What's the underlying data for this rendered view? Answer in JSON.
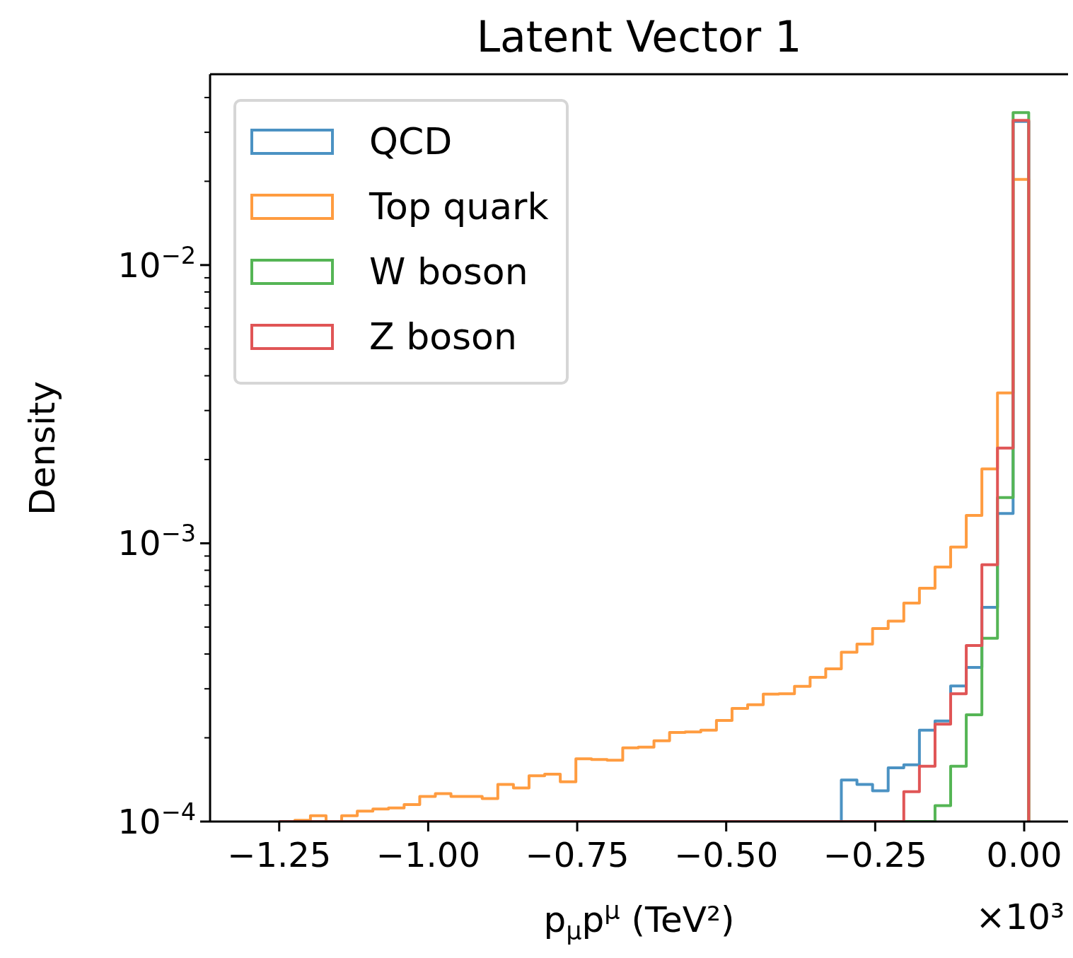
{
  "chart_data": {
    "type": "histogram",
    "title": "Latent Vector 1",
    "xlabel": "p$_{μ}$p$^{μ}$ (TeV²)",
    "ylabel": "Density",
    "annotations": [
      "×10³"
    ],
    "bins": [
      -1.25,
      -1.2238,
      -1.1976,
      -1.1714,
      -1.1452,
      -1.119,
      -1.0928,
      -1.0666,
      -1.0404,
      -1.0142,
      -0.988,
      -0.9618,
      -0.9356,
      -0.9094,
      -0.8832,
      -0.857,
      -0.8308,
      -0.8046,
      -0.7784,
      -0.7522,
      -0.726,
      -0.6998,
      -0.6736,
      -0.6474,
      -0.6212,
      -0.595,
      -0.5688,
      -0.5426,
      -0.5164,
      -0.4902,
      -0.464,
      -0.4378,
      -0.4116,
      -0.3854,
      -0.3592,
      -0.333,
      -0.3068,
      -0.2806,
      -0.2544,
      -0.2282,
      -0.202,
      -0.1758,
      -0.1496,
      -0.1234,
      -0.0972,
      -0.071,
      -0.0448,
      -0.0186,
      0.0076
    ],
    "series": [
      {
        "name": "QCD",
        "color": "#4b92c3",
        "values": [
          null,
          null,
          null,
          null,
          null,
          null,
          null,
          null,
          null,
          null,
          null,
          null,
          null,
          null,
          null,
          null,
          null,
          null,
          null,
          null,
          null,
          null,
          null,
          null,
          null,
          null,
          null,
          null,
          null,
          null,
          null,
          null,
          null,
          null,
          null,
          0.0001,
          0.000141,
          0.000136,
          0.000129,
          0.000156,
          0.00016,
          0.000213,
          0.00023,
          0.000307,
          0.000358,
          0.000589,
          0.00128,
          0.0328
        ]
      },
      {
        "name": "Top quark",
        "color": "#ff9c40",
        "values": [
          0.0001,
          0.000101,
          0.000105,
          null,
          0.000105,
          0.000109,
          0.000111,
          0.000112,
          0.000115,
          0.000123,
          0.000126,
          0.000123,
          0.000123,
          0.000121,
          0.000136,
          0.000132,
          0.000146,
          0.000148,
          0.000139,
          0.000168,
          0.000167,
          0.000166,
          0.000184,
          0.000185,
          0.000195,
          0.000209,
          0.00021,
          0.000213,
          0.000231,
          0.000255,
          0.000263,
          0.000287,
          0.000288,
          0.000306,
          0.00033,
          0.000354,
          0.000406,
          0.000434,
          0.000494,
          0.000525,
          0.00061,
          0.000689,
          0.000822,
          0.00097,
          0.00126,
          0.00185,
          0.00347,
          0.0203
        ]
      },
      {
        "name": "W boson",
        "color": "#55b555",
        "values": [
          null,
          null,
          null,
          null,
          null,
          null,
          null,
          null,
          null,
          null,
          null,
          null,
          null,
          null,
          null,
          null,
          null,
          null,
          null,
          null,
          null,
          null,
          null,
          null,
          null,
          null,
          null,
          null,
          null,
          null,
          null,
          null,
          null,
          null,
          null,
          null,
          null,
          null,
          null,
          null,
          null,
          null,
          0.000114,
          0.000158,
          0.000242,
          0.000456,
          0.00146,
          0.0353
        ]
      },
      {
        "name": "Z boson",
        "color": "#e05556",
        "values": [
          null,
          null,
          null,
          null,
          null,
          null,
          null,
          null,
          null,
          null,
          null,
          null,
          null,
          null,
          null,
          null,
          null,
          null,
          null,
          null,
          null,
          null,
          null,
          null,
          null,
          null,
          null,
          null,
          null,
          null,
          null,
          null,
          null,
          null,
          null,
          null,
          null,
          null,
          null,
          null,
          0.000128,
          0.000158,
          0.000224,
          0.000288,
          0.000429,
          0.000837,
          0.0022,
          0.0331
        ]
      }
    ],
    "log": "y",
    "legend": "top left",
    "grid": false,
    "xlim": [
      -1.366,
      0.0736
    ],
    "xticks": [
      {
        "value": -1.25,
        "label": "−1.25"
      },
      {
        "value": -1,
        "label": "−1.00"
      },
      {
        "value": -0.75,
        "label": "−0.75"
      },
      {
        "value": -0.5,
        "label": "−0.50"
      },
      {
        "value": -0.25,
        "label": "−0.25"
      },
      {
        "value": 0,
        "label": "0.00"
      }
    ],
    "ylim": [
      0.0001,
      0.0485
    ],
    "yticks": [
      {
        "value": 0.0001,
        "label": "10$^{−4}$"
      },
      {
        "value": 0.0002,
        "label": null
      },
      {
        "value": 0.0003,
        "label": null
      },
      {
        "value": 0.0004,
        "label": null
      },
      {
        "value": 0.0005,
        "label": null
      },
      {
        "value": 0.0006,
        "label": null
      },
      {
        "value": 0.0007,
        "label": null
      },
      {
        "value": 0.0008,
        "label": null
      },
      {
        "value": 0.0009,
        "label": null
      },
      {
        "value": 0.001,
        "label": "10$^{−3}$"
      },
      {
        "value": 0.002,
        "label": null
      },
      {
        "value": 0.003,
        "label": null
      },
      {
        "value": 0.004,
        "label": null
      },
      {
        "value": 0.005,
        "label": null
      },
      {
        "value": 0.006,
        "label": null
      },
      {
        "value": 0.007,
        "label": null
      },
      {
        "value": 0.008,
        "label": null
      },
      {
        "value": 0.009,
        "label": null
      },
      {
        "value": 0.01,
        "label": "10$^{−2}$"
      },
      {
        "value": 0.02,
        "label": null
      },
      {
        "value": 0.03,
        "label": null
      },
      {
        "value": 0.04,
        "label": null
      }
    ]
  }
}
